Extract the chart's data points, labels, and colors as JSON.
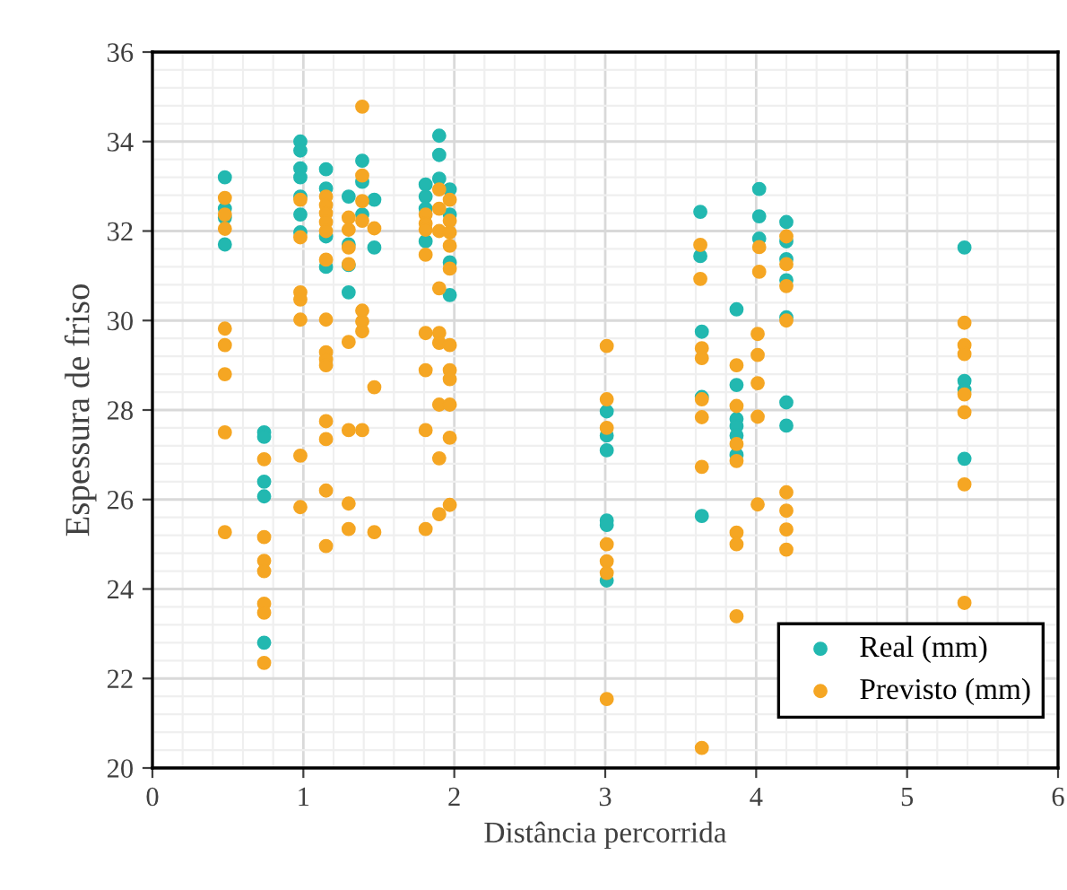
{
  "chart_data": {
    "type": "scatter",
    "xlabel": "Distância percorrida",
    "ylabel": "Espessura de friso",
    "xlim": [
      0,
      6
    ],
    "ylim": [
      20,
      36
    ],
    "xticks": [
      0,
      1,
      2,
      3,
      4,
      5,
      6
    ],
    "yticks": [
      20,
      22,
      24,
      26,
      28,
      30,
      32,
      34,
      36
    ],
    "grid": true,
    "legend": "bottom right",
    "marker": "circle",
    "series": [
      {
        "name": "Real (mm)",
        "color": "#22b8b0",
        "x": [
          0.48,
          0.48,
          0.48,
          0.48,
          0.74,
          0.74,
          0.74,
          0.74,
          0.74,
          0.98,
          0.98,
          0.98,
          0.98,
          0.98,
          0.98,
          0.98,
          1.15,
          1.15,
          1.15,
          1.15,
          1.3,
          1.3,
          1.3,
          1.3,
          1.39,
          1.39,
          1.39,
          1.47,
          1.47,
          1.81,
          1.81,
          1.81,
          1.81,
          1.9,
          1.9,
          1.9,
          1.97,
          1.97,
          1.97,
          1.97,
          3.01,
          3.01,
          3.01,
          3.01,
          3.01,
          3.01,
          3.63,
          3.63,
          3.64,
          3.64,
          3.64,
          3.87,
          3.87,
          3.87,
          3.87,
          3.87,
          3.87,
          4.02,
          4.02,
          4.02,
          4.2,
          4.2,
          4.2,
          4.2,
          4.2,
          4.2,
          4.2,
          5.38,
          5.38,
          5.38,
          5.38
        ],
        "values": [
          33.2,
          32.5,
          32.3,
          31.7,
          27.5,
          27.4,
          26.4,
          26.07,
          22.8,
          34.0,
          33.8,
          33.4,
          33.2,
          32.77,
          32.37,
          31.97,
          33.38,
          32.95,
          31.88,
          31.2,
          32.77,
          31.7,
          31.24,
          30.63,
          33.57,
          33.1,
          32.37,
          32.7,
          31.63,
          33.04,
          32.77,
          32.5,
          31.77,
          34.13,
          33.7,
          33.17,
          32.93,
          32.37,
          31.3,
          30.57,
          27.97,
          27.43,
          27.1,
          25.53,
          25.43,
          24.19,
          32.43,
          31.44,
          29.75,
          28.29,
          25.63,
          30.25,
          28.56,
          27.8,
          27.64,
          27.43,
          27.0,
          32.94,
          32.33,
          31.83,
          32.2,
          31.77,
          31.37,
          30.9,
          30.07,
          28.17,
          27.65,
          31.63,
          28.65,
          28.45,
          26.91
        ]
      },
      {
        "name": "Previsto (mm)",
        "color": "#f5a623",
        "x": [
          0.48,
          0.48,
          0.48,
          0.48,
          0.48,
          0.48,
          0.48,
          0.48,
          0.74,
          0.74,
          0.74,
          0.74,
          0.74,
          0.74,
          0.74,
          0.98,
          0.98,
          0.98,
          0.98,
          0.98,
          0.98,
          0.98,
          1.15,
          1.15,
          1.15,
          1.15,
          1.15,
          1.15,
          1.15,
          1.15,
          1.15,
          1.15,
          1.15,
          1.15,
          1.15,
          1.15,
          1.3,
          1.3,
          1.3,
          1.3,
          1.3,
          1.3,
          1.3,
          1.3,
          1.39,
          1.39,
          1.39,
          1.39,
          1.39,
          1.39,
          1.39,
          1.39,
          1.47,
          1.47,
          1.47,
          1.81,
          1.81,
          1.81,
          1.81,
          1.81,
          1.81,
          1.81,
          1.81,
          1.9,
          1.9,
          1.9,
          1.9,
          1.9,
          1.9,
          1.9,
          1.9,
          1.9,
          1.97,
          1.97,
          1.97,
          1.97,
          1.97,
          1.97,
          1.97,
          1.97,
          1.97,
          1.97,
          1.97,
          3.01,
          3.01,
          3.01,
          3.01,
          3.01,
          3.01,
          3.01,
          3.63,
          3.63,
          3.64,
          3.64,
          3.64,
          3.64,
          3.64,
          3.64,
          3.87,
          3.87,
          3.87,
          3.87,
          3.87,
          3.87,
          3.87,
          4.02,
          4.02,
          4.01,
          4.01,
          4.01,
          4.01,
          4.01,
          4.2,
          4.2,
          4.2,
          4.2,
          4.2,
          4.2,
          4.2,
          4.2,
          5.38,
          5.38,
          5.38,
          5.38,
          5.38,
          5.38,
          5.38
        ],
        "values": [
          32.74,
          32.37,
          32.05,
          29.82,
          29.45,
          28.8,
          27.5,
          25.27,
          26.9,
          25.16,
          24.63,
          24.4,
          23.67,
          23.47,
          22.35,
          32.7,
          31.86,
          30.63,
          30.47,
          30.02,
          26.98,
          25.83,
          32.77,
          32.58,
          32.4,
          32.2,
          32.0,
          31.36,
          30.02,
          29.29,
          29.13,
          29.0,
          27.75,
          27.35,
          26.2,
          24.96,
          32.3,
          32.03,
          31.63,
          31.26,
          29.52,
          27.55,
          25.91,
          25.34,
          34.78,
          33.24,
          32.67,
          32.23,
          30.22,
          29.98,
          29.76,
          27.55,
          32.06,
          28.51,
          25.27,
          32.37,
          32.17,
          32.03,
          31.47,
          29.72,
          28.89,
          27.55,
          25.34,
          32.93,
          32.5,
          32.0,
          30.72,
          29.72,
          29.5,
          28.12,
          26.92,
          25.67,
          32.7,
          32.23,
          31.97,
          31.67,
          31.16,
          29.45,
          28.89,
          28.69,
          28.12,
          27.38,
          25.88,
          29.43,
          28.24,
          27.6,
          25.0,
          24.62,
          24.36,
          21.54,
          31.69,
          30.93,
          29.38,
          29.16,
          28.24,
          27.84,
          26.73,
          20.45,
          29.0,
          28.09,
          27.24,
          26.86,
          25.26,
          25.0,
          23.39,
          31.64,
          31.09,
          29.7,
          29.23,
          28.6,
          27.85,
          25.89,
          31.88,
          31.26,
          30.77,
          30.0,
          26.16,
          25.75,
          25.33,
          24.88,
          29.95,
          29.45,
          29.25,
          28.35,
          27.95,
          26.34,
          23.69
        ]
      }
    ]
  }
}
